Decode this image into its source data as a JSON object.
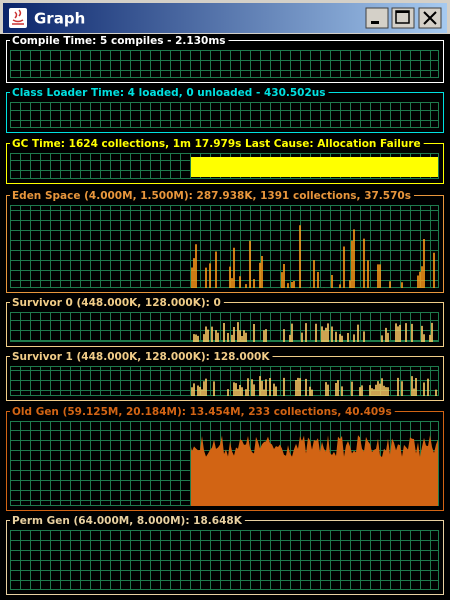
{
  "window": {
    "title": "Graph"
  },
  "panels": [
    {
      "label": "Compile Time: 5 compiles - 2.130ms"
    },
    {
      "label": "Class Loader Time: 4 loaded, 0 unloaded - 430.502us"
    },
    {
      "label": "GC Time: 1624 collections, 1m 17.979s  Last Cause: Allocation Failure"
    },
    {
      "label": "Eden Space (4.000M, 1.500M): 287.938K, 1391 collections, 37.570s"
    },
    {
      "label": "Survivor 0 (448.000K, 128.000K): 0"
    },
    {
      "label": "Survivor 1 (448.000K, 128.000K): 128.000K"
    },
    {
      "label": "Old Gen (59.125M, 20.184M): 13.454M, 233 collections, 40.409s"
    },
    {
      "label": "Perm Gen (64.000M, 8.000M): 18.648K"
    }
  ]
}
